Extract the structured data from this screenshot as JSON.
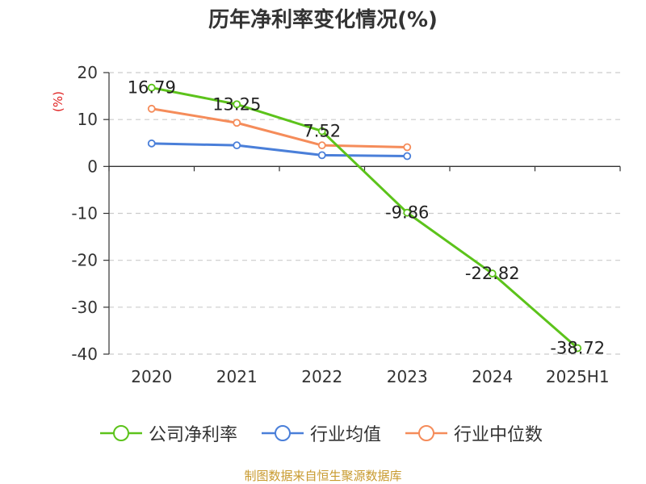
{
  "chart_title": "历年净利率变化情况(%)",
  "y_unit": "(%)",
  "source": "制图数据来自恒生聚源数据库",
  "chart_data": {
    "type": "line",
    "categories": [
      "2020",
      "2021",
      "2022",
      "2023",
      "2024",
      "2025H1"
    ],
    "ylim": [
      -40,
      20
    ],
    "yticks": [
      20,
      10,
      0,
      -10,
      -20,
      -30,
      -40
    ],
    "grid": true,
    "legend_position": "bottom",
    "series": [
      {
        "name": "公司净利率",
        "color": "#5cc31b",
        "labeled": true,
        "values": [
          16.79,
          13.25,
          7.52,
          -9.86,
          -22.82,
          -38.72
        ]
      },
      {
        "name": "行业均值",
        "color": "#4a7fd9",
        "labeled": false,
        "values": [
          4.9,
          4.5,
          2.4,
          2.2,
          null,
          null
        ]
      },
      {
        "name": "行业中位数",
        "color": "#f58c5a",
        "labeled": false,
        "values": [
          12.3,
          9.3,
          4.5,
          4.1,
          null,
          null
        ]
      }
    ]
  }
}
